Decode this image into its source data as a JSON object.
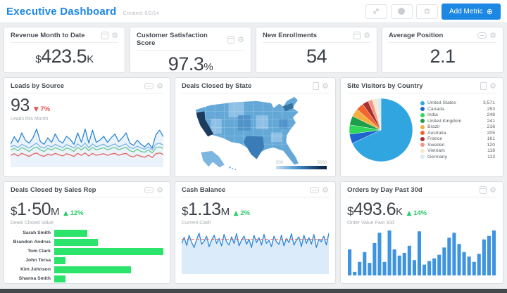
{
  "header": {
    "title": "Executive Dashboard",
    "created": "Created: 8/2/14",
    "add_metric_label": "Add Metric",
    "add_metric_icon": "⊕"
  },
  "kpis": [
    {
      "title": "Revenue Month to Date",
      "prefix": "$",
      "value": "423.5",
      "suffix": "K"
    },
    {
      "title": "Customer Satisfaction Score",
      "prefix": "",
      "value": "97.3",
      "suffix": "%"
    },
    {
      "title": "New Enrollments",
      "prefix": "",
      "value": "54",
      "suffix": ""
    },
    {
      "title": "Average Position",
      "prefix": "",
      "value": "2.1",
      "suffix": ""
    }
  ],
  "leads": {
    "title": "Leads by Source",
    "value": "93",
    "delta_arrow": "▼",
    "delta_pct": "7%",
    "subtitle": "Leads this Month",
    "chart_data": {
      "type": "line",
      "ylim": [
        0,
        100
      ],
      "series": [
        {
          "name": "line-1",
          "color": "#2e86d4",
          "fill": "#eaf3fb",
          "values": [
            55,
            75,
            60,
            85,
            65,
            58,
            72,
            95,
            62,
            55,
            72,
            60,
            82,
            64,
            58,
            76,
            68,
            55,
            85,
            60,
            95,
            58,
            92,
            60,
            66,
            76,
            60,
            72,
            82,
            62,
            72,
            85,
            58,
            52,
            66,
            55,
            48,
            58,
            45,
            80,
            92,
            75
          ]
        },
        {
          "name": "line-2",
          "color": "#7ab5e6",
          "values": [
            48,
            52,
            46,
            55,
            50,
            45,
            52,
            58,
            48,
            45,
            52,
            48,
            55,
            50,
            46,
            54,
            50,
            45,
            56,
            48,
            58,
            46,
            56,
            48,
            52,
            55,
            48,
            52,
            56,
            48,
            52,
            56,
            46,
            44,
            50,
            45,
            42,
            48,
            40,
            55,
            58,
            52
          ]
        },
        {
          "name": "line-3",
          "color": "#66c98e",
          "values": [
            40,
            44,
            38,
            46,
            42,
            36,
            44,
            48,
            40,
            36,
            44,
            40,
            46,
            42,
            38,
            45,
            42,
            36,
            47,
            40,
            48,
            38,
            47,
            40,
            43,
            46,
            40,
            44,
            47,
            40,
            44,
            47,
            38,
            35,
            42,
            36,
            34,
            40,
            32,
            46,
            48,
            44
          ]
        },
        {
          "name": "line-4",
          "color": "#e2635c",
          "values": [
            26,
            30,
            24,
            31,
            27,
            23,
            29,
            32,
            26,
            23,
            29,
            26,
            31,
            27,
            24,
            30,
            27,
            23,
            31,
            26,
            32,
            24,
            31,
            26,
            28,
            30,
            26,
            29,
            31,
            26,
            29,
            31,
            24,
            22,
            27,
            23,
            21,
            26,
            20,
            30,
            32,
            28
          ]
        }
      ]
    }
  },
  "map": {
    "title": "Deals Closed by State",
    "legend_min": "500",
    "legend_max": "5000",
    "color_low": "#c9dff2",
    "color_high": "#0b2240"
  },
  "visitors": {
    "title": "Site Visitors by Country",
    "chart_data": {
      "type": "pie",
      "slices": [
        {
          "label": "United States",
          "value": 3571,
          "display": "3,571",
          "color": "#31a5e0"
        },
        {
          "label": "Canada",
          "value": 253,
          "display": "253",
          "color": "#1f66cc"
        },
        {
          "label": "India",
          "value": 248,
          "display": "248",
          "color": "#2fd858"
        },
        {
          "label": "United Kingdom",
          "value": 241,
          "display": "241",
          "color": "#1d9e4b"
        },
        {
          "label": "Brazil",
          "value": 216,
          "display": "216",
          "color": "#f3b03f"
        },
        {
          "label": "Australia",
          "value": 205,
          "display": "205",
          "color": "#f26430"
        },
        {
          "label": "France",
          "value": 161,
          "display": "161",
          "color": "#a83232"
        },
        {
          "label": "Sweden",
          "value": 120,
          "display": "120",
          "color": "#f2968c"
        },
        {
          "label": "Vietnam",
          "value": 118,
          "display": "118",
          "color": "#f7e8c8"
        },
        {
          "label": "Germany",
          "value": 113,
          "display": "113",
          "color": "#d8eaf8"
        }
      ]
    }
  },
  "sales": {
    "title": "Deals Closed by Sales Rep",
    "prefix": "$",
    "value": "1·50",
    "suffix": "M",
    "delta_arrow": "▲",
    "delta_pct": "12%",
    "subtitle": "Deals Closed Value",
    "chart_data": {
      "type": "bar",
      "orientation": "horizontal",
      "color": "#2ce36b",
      "categories": [
        "Sarah Smith",
        "Brandon Andrus",
        "Tom Clark",
        "John Tersa",
        "Kim Johnson",
        "Shanna Smith"
      ],
      "values": [
        30,
        40,
        100,
        10,
        70,
        10
      ]
    }
  },
  "cash": {
    "title": "Cash Balance",
    "prefix": "$",
    "value": "1.13",
    "suffix": "M",
    "delta_arrow": "▲",
    "delta_pct": "2%",
    "subtitle": "Current Cash",
    "chart_data": {
      "type": "area",
      "color": "#2e86d4",
      "fill": "#dcebfa",
      "baseline": 80,
      "baseline_color": "#e2635c",
      "values": [
        70,
        85,
        65,
        90,
        72,
        60,
        80,
        95,
        68,
        75,
        88,
        62,
        78,
        90,
        70,
        82,
        64,
        92,
        74,
        66,
        86,
        70,
        94,
        64,
        78,
        88,
        68,
        80,
        60,
        90,
        72,
        84,
        66,
        92,
        70,
        78,
        62,
        88,
        74,
        68,
        90,
        64,
        82,
        72,
        94,
        66,
        78,
        86,
        62,
        90,
        70,
        84,
        68,
        92,
        60,
        80,
        74,
        88,
        66,
        95
      ]
    }
  },
  "orders": {
    "title": "Orders by Day Past 30d",
    "prefix": "$",
    "value": "493.6",
    "suffix": "K",
    "delta_arrow": "▲",
    "delta_pct": "14%",
    "subtitle": "Order Value Past 30d",
    "chart_data": {
      "type": "bar",
      "color": "#3f94e0",
      "values": [
        58,
        8,
        30,
        52,
        28,
        72,
        95,
        30,
        100,
        58,
        44,
        50,
        66,
        34,
        98,
        24,
        32,
        38,
        46,
        62,
        84,
        95,
        70,
        52,
        42,
        30,
        48,
        80,
        88,
        100
      ]
    }
  }
}
